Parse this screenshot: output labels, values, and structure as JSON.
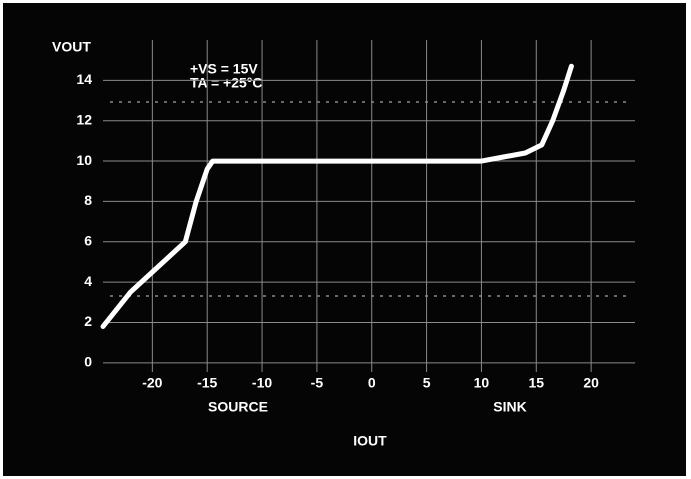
{
  "chart_data": {
    "type": "line",
    "ylabel": "VOUT",
    "xlabel": "IOUT",
    "annotations": [
      "+VS = 15V",
      "TA = +25°C"
    ],
    "x_groups": [
      "SOURCE",
      "SINK"
    ],
    "x": [
      -24.5,
      -22,
      -20,
      -18,
      -17,
      -16,
      -15,
      -14.5,
      -14,
      -10,
      0,
      10,
      12,
      14,
      15.5,
      16.5,
      17.5,
      18.2
    ],
    "series": [
      {
        "color": "#ffffff",
        "values": [
          1.8,
          3.5,
          4.5,
          5.5,
          6,
          8,
          9.6,
          10,
          10,
          10,
          10,
          10,
          10.2,
          10.4,
          10.8,
          12,
          13.5,
          14.7
        ]
      }
    ],
    "xlim": [
      -24.5,
      24
    ],
    "xticks": [
      -20,
      -15,
      -10,
      -5,
      0,
      5,
      10,
      15,
      20
    ],
    "ylim": [
      -1,
      16
    ],
    "yticks": [
      0,
      2,
      4,
      6,
      8,
      10,
      12,
      14
    ],
    "grid": true
  }
}
